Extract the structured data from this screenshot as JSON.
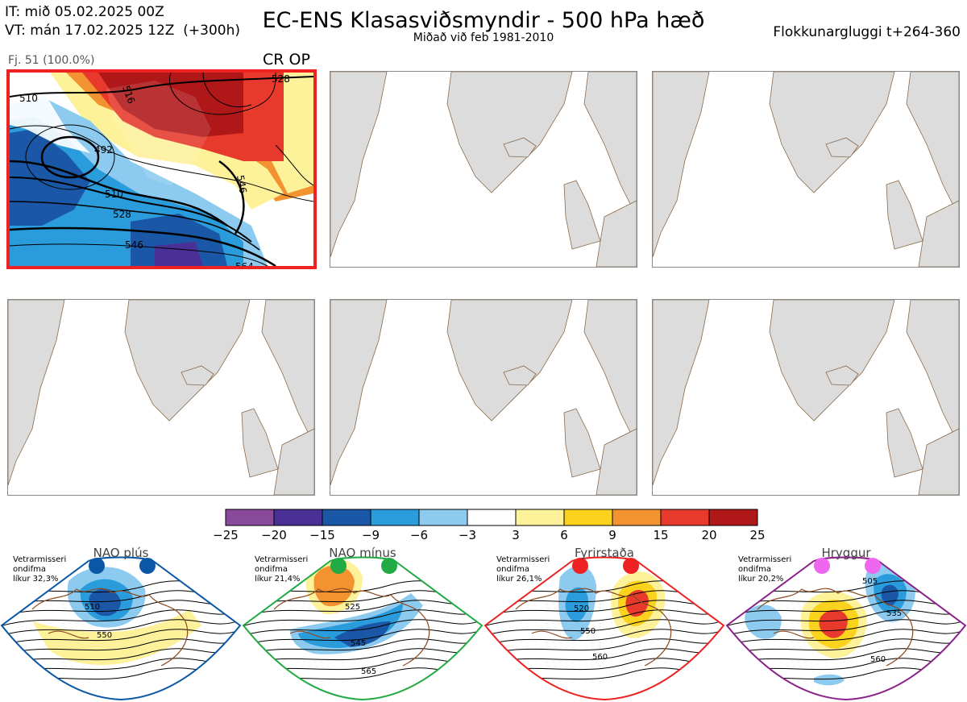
{
  "header": {
    "init_time": "IT: mið 05.02.2025 00Z",
    "valid_time": "VT: mán 17.02.2025 12Z  (+300h)",
    "title": "EC-ENS Klasasviðsmyndir - 500 hPa hæð",
    "subtitle": "Miðað við feb 1981-2010",
    "window": "Flokkunargluggi t+264-360"
  },
  "cluster_panel": {
    "label": "Fj. 51 (100.0%)",
    "op_label": "CR OP",
    "contour_labels": [
      "510",
      "516",
      "492",
      "510",
      "528",
      "546",
      "546",
      "564",
      "528"
    ]
  },
  "colors": {
    "land": "#dcdcdc",
    "coast": "#8b6a4a",
    "highlight": "#ee2222"
  },
  "chart_data": {
    "type": "heatmap",
    "title": "EC-ENS Klasasviðsmyndir - 500 hPa hæð",
    "colorbar": {
      "ticks": [
        "−25",
        "−20",
        "−15",
        "−9",
        "−6",
        "−3",
        "3",
        "6",
        "9",
        "15",
        "20",
        "25"
      ],
      "colors": [
        "#8a4a9c",
        "#4a2f96",
        "#1a57a6",
        "#2a9bdb",
        "#8ccbef",
        "#ffffff",
        "#fdf19a",
        "#fbd21e",
        "#f29230",
        "#e83a2c",
        "#b01719"
      ]
    },
    "regimes": [
      {
        "name": "NAO plús",
        "note": [
          "Vetrarmisseri",
          "ondifma",
          "líkur 32,3%"
        ],
        "dot_color": "#0a57a6",
        "outline": "#0a57a6",
        "labels": [
          "510",
          "550"
        ]
      },
      {
        "name": "NAO mínus",
        "note": [
          "Vetrarmisseri",
          "ondifma",
          "líkur 21,4%"
        ],
        "dot_color": "#22aa44",
        "outline": "#22aa44",
        "labels": [
          "525",
          "545",
          "565"
        ]
      },
      {
        "name": "Fyrirstaða",
        "note": [
          "Vetrarmisseri",
          "ondifma",
          "líkur 26,1%"
        ],
        "dot_color": "#ee2222",
        "outline": "#ee2222",
        "labels": [
          "520",
          "550",
          "560"
        ]
      },
      {
        "name": "Hryggur",
        "note": [
          "Vetrarmisseri",
          "ondifma",
          "líkur 20,2%"
        ],
        "dot_color": "#ee66ee",
        "outline": "#882288",
        "labels": [
          "505",
          "535",
          "560"
        ]
      }
    ]
  }
}
